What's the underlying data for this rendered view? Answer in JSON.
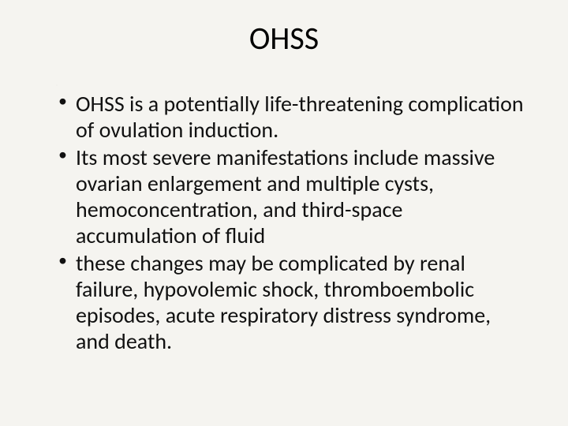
{
  "slide": {
    "title": "OHSS",
    "bullets": [
      " OHSS is a potentially life-threatening complication of ovulation induction.",
      " Its most severe manifestations include massive ovarian enlargement and multiple cysts, hemoconcentration, and third-space accumulation of fluid",
      "these changes may be complicated by renal failure, hypovolemic shock, thromboembolic episodes, acute respiratory distress syndrome, and death."
    ],
    "background_color": "#f5f4f0",
    "text_color": "#111111",
    "title_fontsize": 40,
    "body_fontsize": 28,
    "font_family": "Calibri"
  }
}
